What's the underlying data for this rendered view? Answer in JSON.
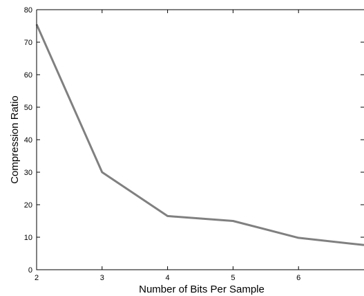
{
  "chart_data": {
    "type": "line",
    "xlabel": "Number of Bits Per Sample",
    "ylabel": "Compression Ratio",
    "xlim": [
      2,
      7
    ],
    "ylim": [
      0,
      80
    ],
    "x_ticks": [
      2,
      3,
      4,
      5,
      6
    ],
    "y_ticks": [
      0,
      10,
      20,
      30,
      40,
      50,
      60,
      70,
      80
    ],
    "grid": false,
    "series": [
      {
        "x": [
          2,
          3,
          4,
          5,
          6,
          7
        ],
        "y": [
          75.5,
          30,
          16.5,
          15,
          9.8,
          7.6
        ],
        "color": "#808080"
      }
    ]
  }
}
